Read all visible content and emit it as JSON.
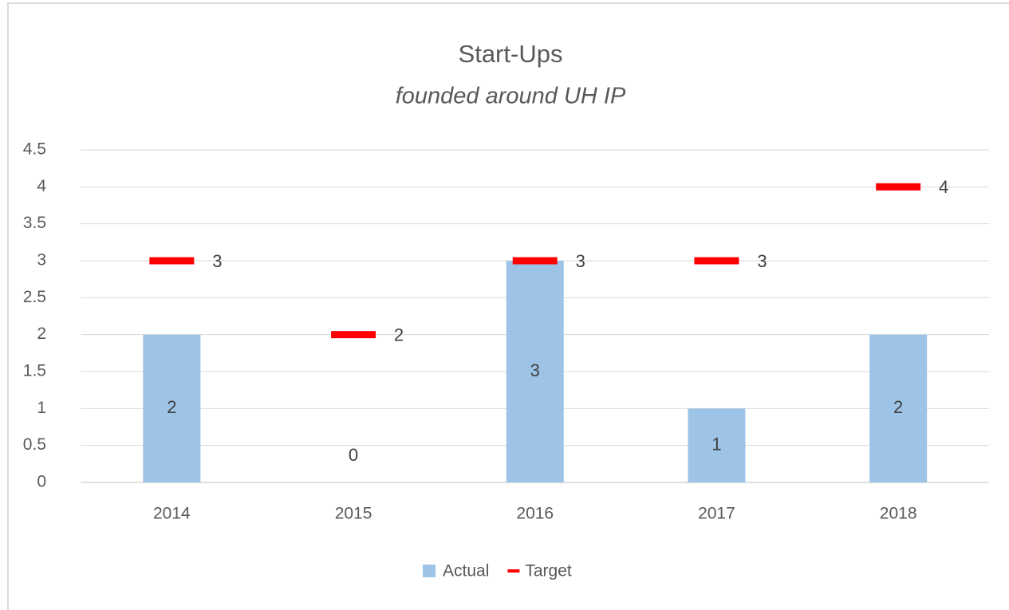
{
  "chart_data": {
    "type": "bar",
    "title": "Start-Ups",
    "subtitle": "founded around UH IP",
    "categories": [
      "2014",
      "2015",
      "2016",
      "2017",
      "2018"
    ],
    "series": [
      {
        "name": "Actual",
        "type": "bar",
        "color": "#9dc3e6",
        "values": [
          2,
          0,
          3,
          1,
          2
        ]
      },
      {
        "name": "Target",
        "type": "dash",
        "color": "#ff0000",
        "values": [
          3,
          2,
          3,
          3,
          4
        ]
      }
    ],
    "ylim": [
      0,
      4.5
    ],
    "yticks": [
      0,
      0.5,
      1,
      1.5,
      2,
      2.5,
      3,
      3.5,
      4,
      4.5
    ],
    "grid": true,
    "legend": "bottom"
  }
}
